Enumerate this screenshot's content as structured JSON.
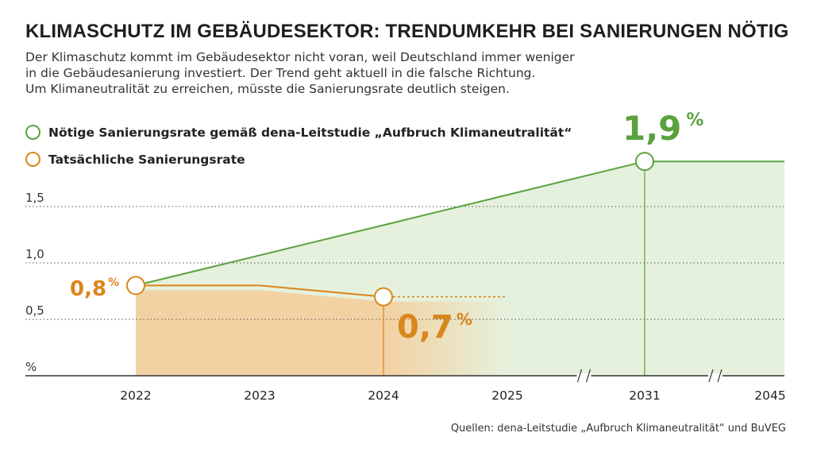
{
  "title": "KLIMASCHUTZ IM GEBÄUDESEKTOR: TRENDUMKEHR BEI SANIERUNGEN NÖTIG",
  "subtitle_lines": [
    "Der Klimaschutz kommt im Gebäudesektor nicht voran, weil Deutschland immer weniger",
    "in die Gebäudesanierung investiert. Der Trend geht aktuell in die falsche Richtung.",
    "Um Klimaneutralität zu erreichen, müsste die Sanierungsrate deutlich steigen."
  ],
  "source": "Quellen: dena-Leitstudie „Aufbruch Klimaneutralität“ und BuVEG",
  "colors": {
    "green": "#5aa23f",
    "green_fill": "#e5f1dc",
    "orange": "#d9861b",
    "orange_fill": "#f2d2a3",
    "axis": "#333333"
  },
  "chart_data": {
    "type": "line",
    "title": "",
    "xlabel": "",
    "ylabel": "%",
    "categories": [
      "2022",
      "2023",
      "2024",
      "2025",
      "2031",
      "2045"
    ],
    "axis_breaks_after": [
      "2025",
      "2031"
    ],
    "y_ticks": [
      "0,5",
      "1,0",
      "1,5"
    ],
    "y_tick_values": [
      0.5,
      1.0,
      1.5
    ],
    "ylim": [
      0,
      2.3
    ],
    "grid": "dotted",
    "legend_position": "top-left",
    "series": [
      {
        "name": "Nötige Sanierungsrate gemäß dena-Leitstudie „Aufbruch Klimaneutralität“",
        "color_key": "green",
        "x": [
          "2022",
          "2031",
          "2045"
        ],
        "values": [
          0.8,
          1.9,
          1.9
        ]
      },
      {
        "name": "Tatsächliche Sanierungsrate",
        "color_key": "orange",
        "x": [
          "2022",
          "2023",
          "2024"
        ],
        "values": [
          0.8,
          0.8,
          0.7
        ],
        "projection": {
          "x": [
            "2024",
            "2025"
          ],
          "values": [
            0.7,
            0.7
          ]
        }
      }
    ],
    "annotations": [
      {
        "name": "label-start",
        "x": "2022",
        "value": 0.8,
        "number": "0,8",
        "unit": "%",
        "color_key": "orange"
      },
      {
        "name": "label-2024",
        "x": "2024",
        "value": 0.7,
        "number": "0,7",
        "unit": "%",
        "color_key": "orange"
      },
      {
        "name": "label-2031",
        "x": "2031",
        "value": 1.9,
        "number": "1,9",
        "unit": "%",
        "color_key": "green"
      }
    ]
  }
}
